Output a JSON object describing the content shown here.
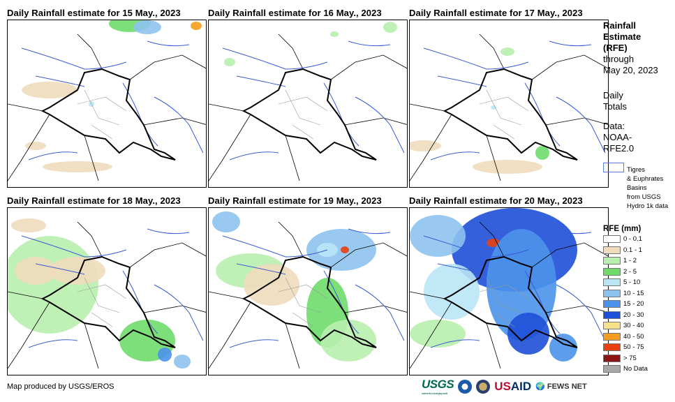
{
  "panels": [
    {
      "title": "Daily Rainfall estimate for 15 May., 2023"
    },
    {
      "title": "Daily Rainfall estimate for 16 May., 2023"
    },
    {
      "title": "Daily Rainfall estimate for 17 May., 2023"
    },
    {
      "title": "Daily Rainfall estimate for 18 May., 2023"
    },
    {
      "title": "Daily Rainfall estimate for 19 May., 2023"
    },
    {
      "title": "Daily Rainfall estimate for 20 May., 2023"
    }
  ],
  "side": {
    "heading": [
      "Rainfall",
      "Estimate",
      "(RFE)"
    ],
    "through": "through",
    "date": "May 20, 2023",
    "daily": "Daily",
    "totals": "Totals",
    "data_label": "Data:",
    "data_src1": "NOAA-",
    "data_src2": "RFE2.0",
    "basin_note": "Tigres\n& Euphrates\nBasins\nfrom USGS\nHydro 1k data",
    "legend_title": "RFE (mm)"
  },
  "legend": [
    {
      "label": "0 - 0.1",
      "color": "#ffffff"
    },
    {
      "label": "0.1 - 1",
      "color": "#f0dcbc"
    },
    {
      "label": "1 - 2",
      "color": "#b8eeae"
    },
    {
      "label": "2 - 5",
      "color": "#6fdc6a"
    },
    {
      "label": "5 - 10",
      "color": "#b9e6f5"
    },
    {
      "label": "10 - 15",
      "color": "#8ec3ef"
    },
    {
      "label": "15 - 20",
      "color": "#4b93ea"
    },
    {
      "label": "20 - 30",
      "color": "#1e4fd8"
    },
    {
      "label": "30 - 40",
      "color": "#f7e18a"
    },
    {
      "label": "40 - 50",
      "color": "#f59d1e"
    },
    {
      "label": "50 - 75",
      "color": "#e8400f"
    },
    {
      "label": "> 75",
      "color": "#8b1414"
    },
    {
      "label": "No Data",
      "color": "#a8a8a8"
    }
  ],
  "footer": "Map produced by USGS/EROS",
  "logos": {
    "usgs": "USGS",
    "usgs_tag": "science for a changing world",
    "usaid": "USAID",
    "fews": "FEWS NET"
  }
}
